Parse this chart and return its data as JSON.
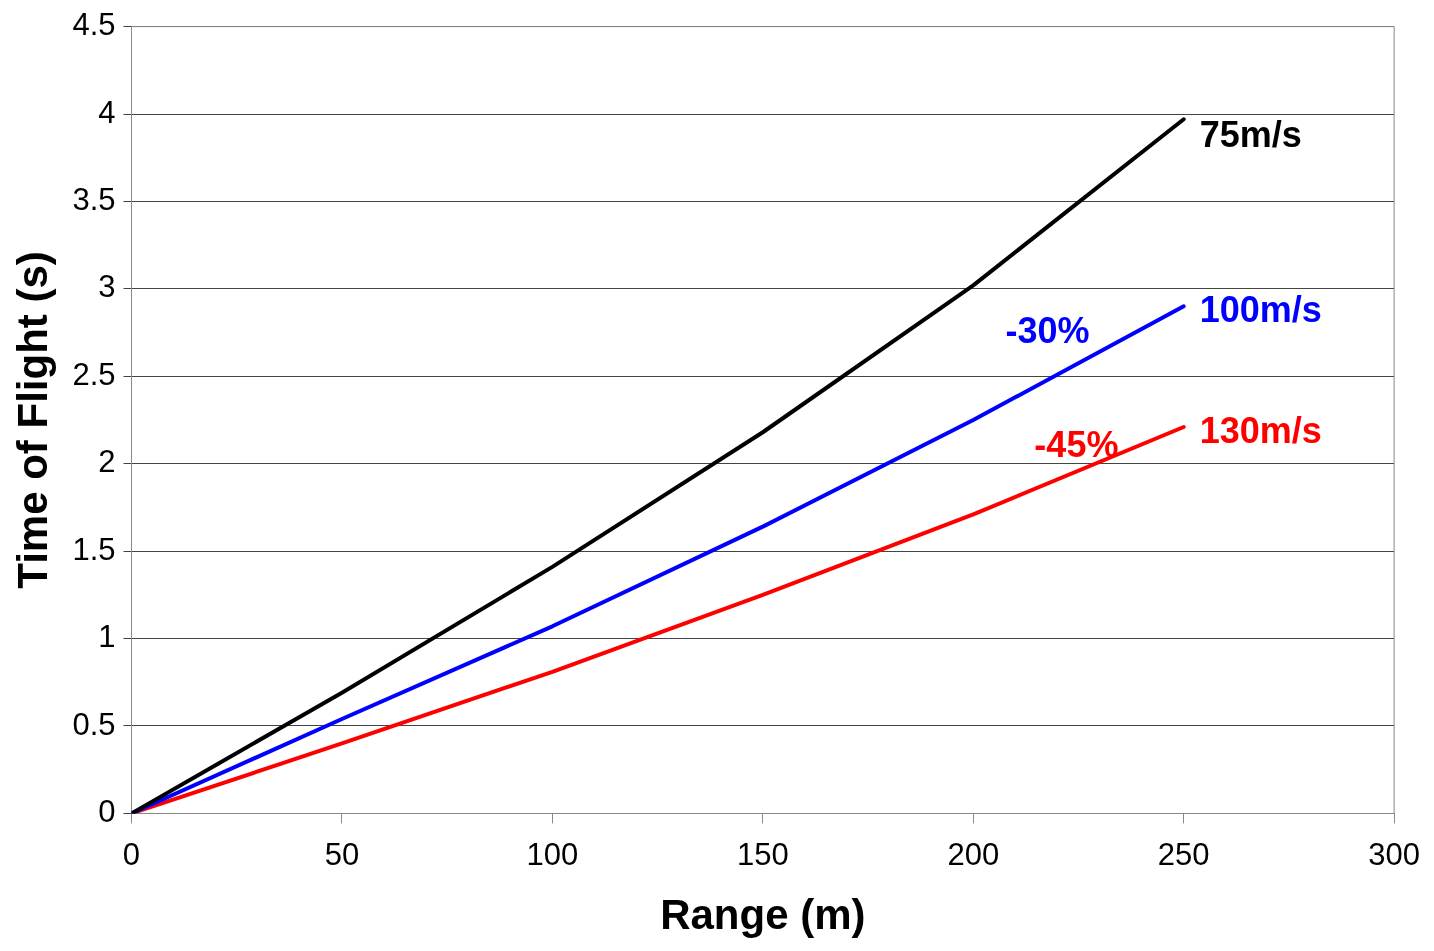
{
  "chart_data": {
    "type": "line",
    "xlabel": "Range (m)",
    "ylabel": "Time of Flight (s)",
    "x": [
      0,
      50,
      100,
      150,
      200,
      250
    ],
    "series": [
      {
        "name": "75m/s",
        "color": "#000000",
        "values": [
          0,
          0.69,
          1.41,
          2.18,
          3.02,
          3.97
        ]
      },
      {
        "name": "100m/s",
        "color": "#0000ff",
        "values": [
          0,
          0.54,
          1.07,
          1.64,
          2.25,
          2.9
        ]
      },
      {
        "name": "130m/s",
        "color": "#ff0000",
        "values": [
          0,
          0.4,
          0.81,
          1.25,
          1.71,
          2.21
        ]
      }
    ],
    "annotations": [
      "-30%",
      "-45%"
    ],
    "xlim": [
      0,
      300
    ],
    "xticks": [
      0,
      50,
      100,
      150,
      200,
      250,
      300
    ],
    "ylim": [
      0,
      4.5
    ],
    "yticks": [
      0,
      0.5,
      1,
      1.5,
      2,
      2.5,
      3,
      3.5,
      4,
      4.5
    ],
    "grid": "y",
    "legend": false,
    "marker": "none",
    "line_style": "solid"
  }
}
